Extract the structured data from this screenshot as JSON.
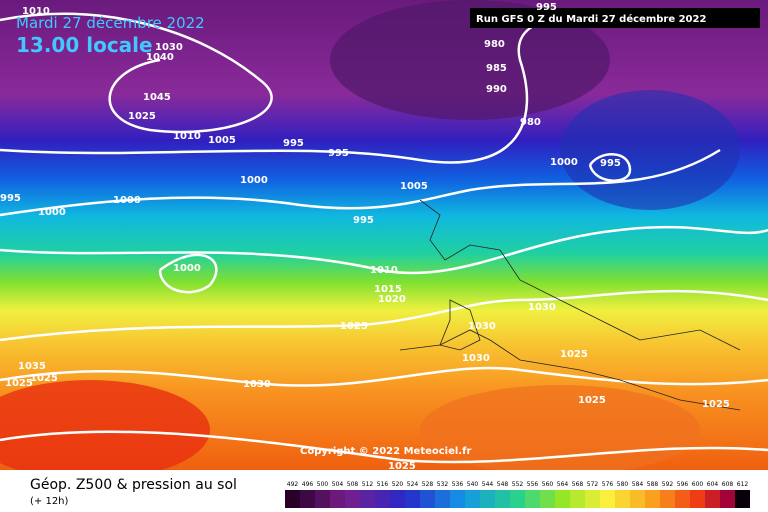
{
  "header": {
    "date": "Mardi 27 décembre 2022",
    "time": "13.00 locale",
    "run": "Run GFS 0 Z du Mardi 27 décembre 2022"
  },
  "copyright": "Copyright © 2022 Meteociel.fr",
  "footer": {
    "title": "Géop. Z500 & pression au sol",
    "subtitle": "(+ 12h)"
  },
  "scale": {
    "values": [
      492,
      496,
      500,
      504,
      508,
      512,
      516,
      520,
      524,
      528,
      532,
      536,
      540,
      544,
      548,
      552,
      556,
      560,
      564,
      568,
      572,
      576,
      580,
      584,
      588,
      592,
      596,
      600,
      604,
      608,
      612
    ]
  },
  "isobar_labels": [
    "1010",
    "1030",
    "1040",
    "1045",
    "1025",
    "1010",
    "1005",
    "995",
    "995",
    "1000",
    "1000",
    "1000",
    "995",
    "995",
    "1005",
    "1000",
    "1010",
    "1015",
    "1020",
    "1025",
    "1030",
    "1030",
    "1030",
    "1025",
    "1030",
    "1025",
    "1025",
    "1035",
    "1025",
    "1025",
    "1025",
    "995",
    "980",
    "985",
    "990",
    "980",
    "1000",
    "995"
  ]
}
